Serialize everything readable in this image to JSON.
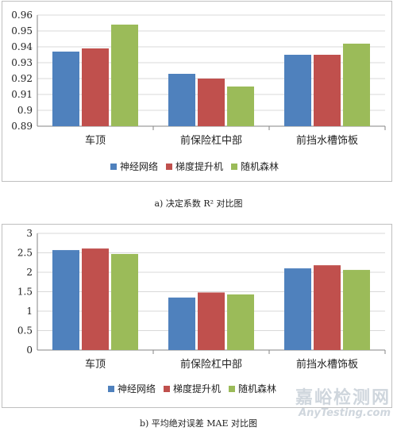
{
  "colors": {
    "series": [
      "#4F81BD",
      "#C0504D",
      "#9BBB59"
    ],
    "grid": "#d9d9d9",
    "axis": "#868686"
  },
  "legend": [
    "神经网络",
    "梯度提升机",
    "随机森林"
  ],
  "captions": {
    "a": "a) 决定系数 R² 对比图",
    "b": "b) 平均绝对误差 MAE 对比图"
  },
  "watermark": {
    "cn": "嘉峪检测网",
    "en": "AnyTesting.com"
  },
  "chart_data": [
    {
      "type": "bar",
      "categories": [
        "车顶",
        "前保险杠中部",
        "前挡水槽饰板"
      ],
      "series": [
        {
          "name": "神经网络",
          "values": [
            0.937,
            0.923,
            0.935
          ]
        },
        {
          "name": "梯度提升机",
          "values": [
            0.939,
            0.92,
            0.935
          ]
        },
        {
          "name": "随机森林",
          "values": [
            0.954,
            0.915,
            0.942
          ]
        }
      ],
      "ylim": [
        0.89,
        0.96
      ],
      "yticks": [
        0.89,
        0.9,
        0.91,
        0.92,
        0.93,
        0.94,
        0.95,
        0.96
      ],
      "ytick_labels": [
        "0.89",
        "0.9",
        "0.91",
        "0.92",
        "0.93",
        "0.94",
        "0.95",
        "0.96"
      ],
      "grid": true,
      "legend_position": "bottom"
    },
    {
      "type": "bar",
      "categories": [
        "车顶",
        "前保险杠中部",
        "前挡水槽饰板"
      ],
      "series": [
        {
          "name": "神经网络",
          "values": [
            2.57,
            1.35,
            2.1
          ]
        },
        {
          "name": "梯度提升机",
          "values": [
            2.61,
            1.48,
            2.18
          ]
        },
        {
          "name": "随机森林",
          "values": [
            2.47,
            1.43,
            2.06
          ]
        }
      ],
      "ylim": [
        0,
        3
      ],
      "yticks": [
        0,
        0.5,
        1,
        1.5,
        2,
        2.5,
        3
      ],
      "ytick_labels": [
        "0",
        "0.5",
        "1",
        "1.5",
        "2",
        "2.5",
        "3"
      ],
      "grid": true,
      "legend_position": "bottom"
    }
  ]
}
